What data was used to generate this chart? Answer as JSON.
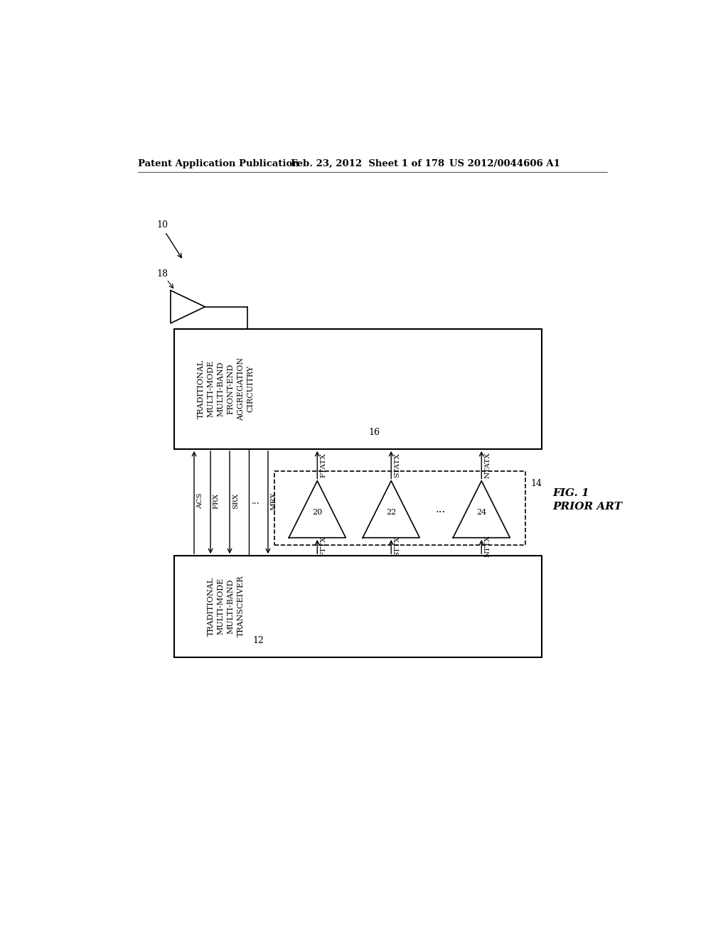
{
  "background_color": "#ffffff",
  "header_text": "Patent Application Publication",
  "header_date": "Feb. 23, 2012  Sheet 1 of 178",
  "header_patent": "US 2012/0044606 A1",
  "fig_label": "FIG. 1",
  "fig_sublabel": "PRIOR ART",
  "label_10": "10",
  "label_18": "18",
  "label_16": "16",
  "label_14": "14",
  "label_12": "12",
  "label_20": "20",
  "label_22": "22",
  "label_24": "24",
  "box16_text": "TRADITIONAL\nMULTI-MODE\nMULTI-BAND\nFRONT-END\nAGGREGATION\nCIRCUITRY",
  "box12_text": "TRADITIONAL\nMULTI-MODE\nMULTI-BAND\nTRANSCEIVER",
  "signals_left": [
    "ACS",
    "FRX",
    "SRX",
    "...",
    "MRX"
  ],
  "signals_top": [
    "FTATX",
    "STATX",
    "NTATX"
  ],
  "signals_bottom": [
    "FTTX",
    "STTX",
    "NTTX"
  ]
}
